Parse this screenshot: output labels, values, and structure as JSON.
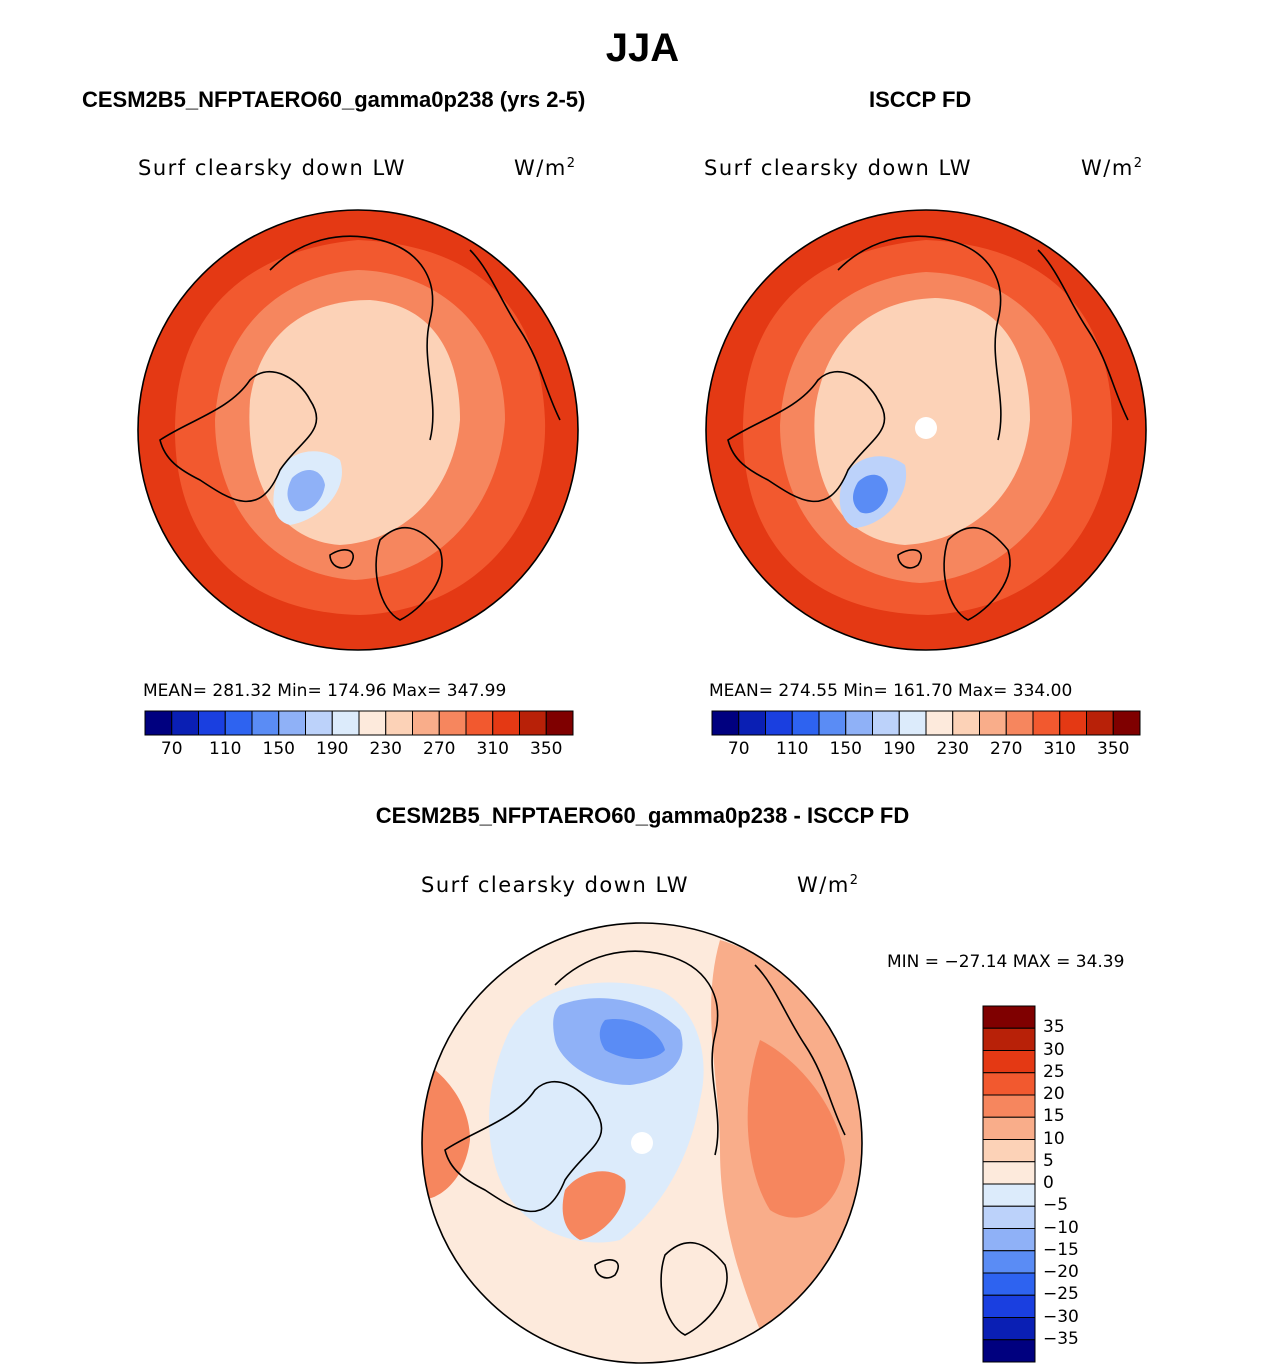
{
  "title": "JJA",
  "panels": [
    {
      "id": "model",
      "title": "CESM2B5_NFPTAERO60_gamma0p238 (yrs 2-5)",
      "variable": "Surf clearsky down LW",
      "units_base": "W/m",
      "units_exp": "2",
      "stats": "MEAN= 281.32   Min= 174.96   Max= 347.99"
    },
    {
      "id": "obs",
      "title": "ISCCP FD",
      "variable": "Surf clearsky down LW",
      "units_base": "W/m",
      "units_exp": "2",
      "stats": "MEAN= 274.55   Min= 161.70   Max= 334.00"
    },
    {
      "id": "diff",
      "title": "CESM2B5_NFPTAERO60_gamma0p238 - ISCCP FD",
      "variable": "Surf clearsky down LW",
      "units_base": "W/m",
      "units_exp": "2",
      "stats": "MIN = −27.14 MAX =  34.39"
    }
  ],
  "chart_data": [
    {
      "type": "heatmap",
      "projection": "north polar stereographic",
      "title": "CESM2B5_NFPTAERO60_gamma0p238 (yrs 2-5)",
      "variable": "Surf clearsky down LW",
      "units": "W/m2",
      "mean": 281.32,
      "min": 174.96,
      "max": 347.99,
      "colorbar": {
        "orientation": "horizontal",
        "levels": [
          70,
          90,
          110,
          130,
          150,
          170,
          190,
          210,
          230,
          250,
          270,
          290,
          310,
          330,
          350
        ],
        "tick_labels": [
          "70",
          "110",
          "150",
          "190",
          "230",
          "270",
          "310",
          "350"
        ],
        "colors": [
          "#00007f",
          "#0a1fb4",
          "#1a3fe0",
          "#2e63f0",
          "#5a8cf5",
          "#8fb1f7",
          "#bcd2fa",
          "#dcebfb",
          "#fdeadc",
          "#fcd2b7",
          "#f9ad8a",
          "#f6865e",
          "#f2592f",
          "#e43914",
          "#b82108",
          "#7f0000"
        ]
      }
    },
    {
      "type": "heatmap",
      "projection": "north polar stereographic",
      "title": "ISCCP FD",
      "variable": "Surf clearsky down LW",
      "units": "W/m2",
      "mean": 274.55,
      "min": 161.7,
      "max": 334.0,
      "colorbar": {
        "orientation": "horizontal",
        "levels": [
          70,
          90,
          110,
          130,
          150,
          170,
          190,
          210,
          230,
          250,
          270,
          290,
          310,
          330,
          350
        ],
        "tick_labels": [
          "70",
          "110",
          "150",
          "190",
          "230",
          "270",
          "310",
          "350"
        ],
        "colors": [
          "#00007f",
          "#0a1fb4",
          "#1a3fe0",
          "#2e63f0",
          "#5a8cf5",
          "#8fb1f7",
          "#bcd2fa",
          "#dcebfb",
          "#fdeadc",
          "#fcd2b7",
          "#f9ad8a",
          "#f6865e",
          "#f2592f",
          "#e43914",
          "#b82108",
          "#7f0000"
        ]
      }
    },
    {
      "type": "heatmap",
      "projection": "north polar stereographic",
      "title": "CESM2B5_NFPTAERO60_gamma0p238 - ISCCP FD",
      "variable": "Surf clearsky down LW",
      "units": "W/m2",
      "min": -27.14,
      "max": 34.39,
      "colorbar": {
        "orientation": "vertical",
        "levels": [
          35,
          30,
          25,
          20,
          15,
          10,
          5,
          0,
          -5,
          -10,
          -15,
          -20,
          -25,
          -30,
          -35
        ],
        "tick_labels": [
          "35",
          "30",
          "25",
          "20",
          "15",
          "10",
          "5",
          "0",
          "−5",
          "−10",
          "−15",
          "−20",
          "−25",
          "−30",
          "−35"
        ],
        "colors": [
          "#7f0000",
          "#b82108",
          "#e43914",
          "#f2592f",
          "#f6865e",
          "#f9ad8a",
          "#fcd2b7",
          "#fdeadc",
          "#dcebfb",
          "#bcd2fa",
          "#8fb1f7",
          "#5a8cf5",
          "#2e63f0",
          "#1a3fe0",
          "#0a1fb4",
          "#00007f"
        ]
      }
    }
  ]
}
